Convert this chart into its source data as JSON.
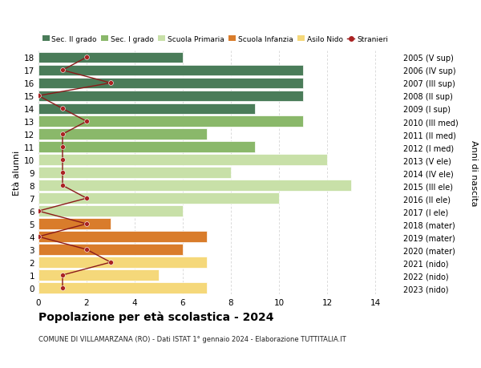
{
  "ages": [
    18,
    17,
    16,
    15,
    14,
    13,
    12,
    11,
    10,
    9,
    8,
    7,
    6,
    5,
    4,
    3,
    2,
    1,
    0
  ],
  "years": [
    "2005 (V sup)",
    "2006 (IV sup)",
    "2007 (III sup)",
    "2008 (II sup)",
    "2009 (I sup)",
    "2010 (III med)",
    "2011 (II med)",
    "2012 (I med)",
    "2013 (V ele)",
    "2014 (IV ele)",
    "2015 (III ele)",
    "2016 (II ele)",
    "2017 (I ele)",
    "2018 (mater)",
    "2019 (mater)",
    "2020 (mater)",
    "2021 (nido)",
    "2022 (nido)",
    "2023 (nido)"
  ],
  "bar_values": [
    6,
    11,
    11,
    11,
    9,
    11,
    7,
    9,
    12,
    8,
    13,
    10,
    6,
    3,
    7,
    6,
    7,
    5,
    7
  ],
  "bar_colors": [
    "#4a7c59",
    "#4a7c59",
    "#4a7c59",
    "#4a7c59",
    "#4a7c59",
    "#8ab86a",
    "#8ab86a",
    "#8ab86a",
    "#c8e0a8",
    "#c8e0a8",
    "#c8e0a8",
    "#c8e0a8",
    "#c8e0a8",
    "#d97c2b",
    "#d97c2b",
    "#d97c2b",
    "#f5d87a",
    "#f5d87a",
    "#f5d87a"
  ],
  "stranieri_values": [
    2,
    1,
    3,
    0,
    1,
    2,
    1,
    1,
    1,
    1,
    1,
    2,
    0,
    2,
    0,
    2,
    3,
    1,
    1
  ],
  "legend_labels": [
    "Sec. II grado",
    "Sec. I grado",
    "Scuola Primaria",
    "Scuola Infanzia",
    "Asilo Nido",
    "Stranieri"
  ],
  "legend_colors": [
    "#4a7c59",
    "#8ab86a",
    "#c8e0a8",
    "#d97c2b",
    "#f5d87a",
    "#aa2222"
  ],
  "title": "Popolazione per età scolastica - 2024",
  "subtitle": "COMUNE DI VILLAMARZANA (RO) - Dati ISTAT 1° gennaio 2024 - Elaborazione TUTTITALIA.IT",
  "ylabel_left": "Età alunni",
  "ylabel_right": "Anni di nascita",
  "xlim": [
    0,
    15
  ],
  "xticks": [
    0,
    2,
    4,
    6,
    8,
    10,
    12,
    14
  ],
  "background_color": "#ffffff",
  "grid_color": "#cccccc"
}
